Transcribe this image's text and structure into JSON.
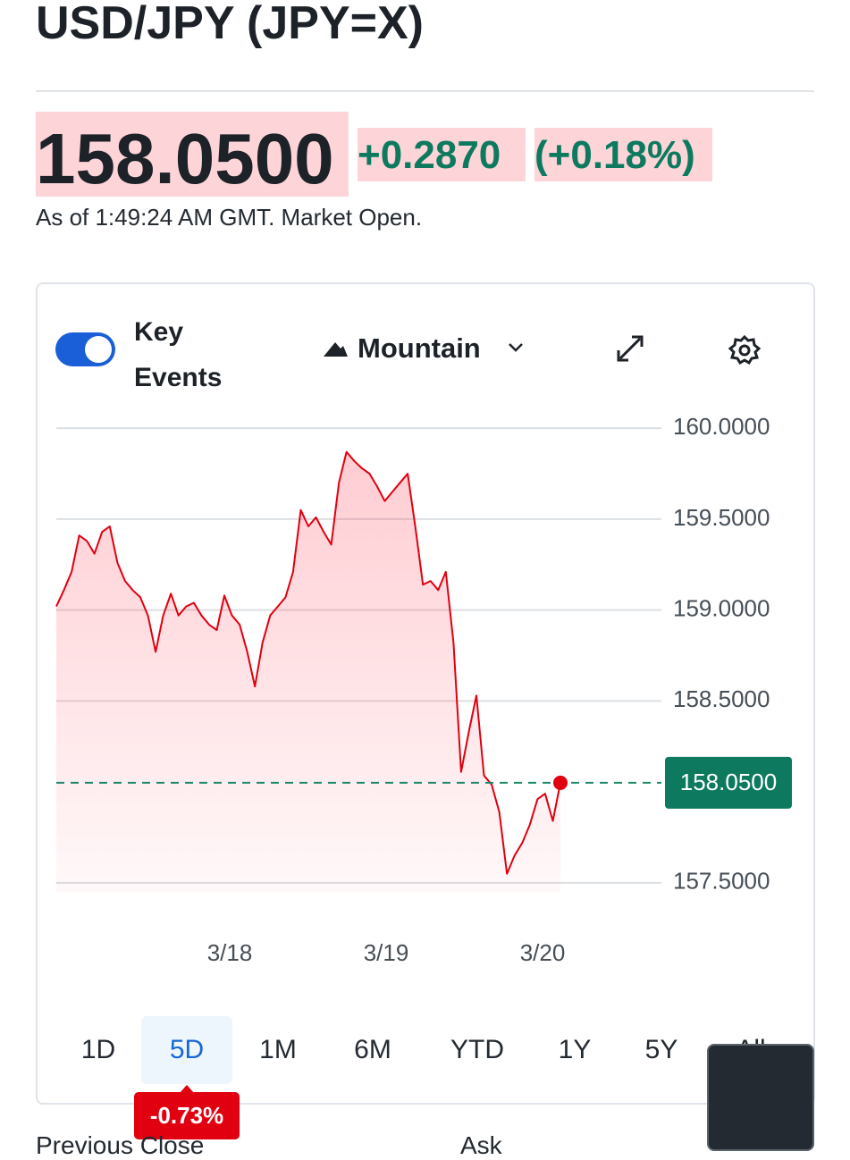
{
  "header": {
    "title": "USD/JPY (JPY=X)"
  },
  "quote": {
    "price": "158.0500",
    "change": "+0.2870",
    "change_percent": "(+0.18%)",
    "timestamp": "As of 1:49:24 AM GMT. Market Open."
  },
  "toolbar": {
    "key_events": "Key Events",
    "chart_type": "Mountain"
  },
  "chart_data": {
    "type": "area",
    "color": "#e0000f",
    "grid": true,
    "x_labels": [
      "3/18",
      "3/19",
      "3/20"
    ],
    "values": [
      159.02,
      159.11,
      159.21,
      159.41,
      159.38,
      159.31,
      159.43,
      159.46,
      159.26,
      159.16,
      159.11,
      159.07,
      158.97,
      158.77,
      158.97,
      159.09,
      158.97,
      159.02,
      159.04,
      158.97,
      158.92,
      158.89,
      159.08,
      158.97,
      158.92,
      158.77,
      158.58,
      158.82,
      158.97,
      159.02,
      159.07,
      159.21,
      159.55,
      159.46,
      159.51,
      159.43,
      159.36,
      159.7,
      159.87,
      159.82,
      159.78,
      159.75,
      159.68,
      159.6,
      159.65,
      159.7,
      159.75,
      159.46,
      159.14,
      159.16,
      159.11,
      159.21,
      158.82,
      158.11,
      158.33,
      158.53,
      158.09,
      158.04,
      157.89,
      157.55,
      157.65,
      157.72,
      157.82,
      157.96,
      157.99,
      157.84,
      158.05
    ],
    "ylim": [
      157.45,
      160.05
    ],
    "yticks": [
      {
        "value": 157.5,
        "label": "157.5000"
      },
      {
        "value": 158.5,
        "label": "158.5000"
      },
      {
        "value": 159,
        "label": "159.0000"
      },
      {
        "value": 159.5,
        "label": "159.5000"
      },
      {
        "value": 160,
        "label": "160.0000"
      }
    ],
    "current": {
      "value": 158.05,
      "label": "158.0500"
    }
  },
  "ranges": {
    "options": [
      "1D",
      "5D",
      "1M",
      "6M",
      "YTD",
      "1Y",
      "5Y",
      "All"
    ],
    "selected": 1,
    "selected_change": "-0.73%"
  },
  "stats": {
    "labels": [
      "Previous Close",
      "Ask"
    ]
  }
}
